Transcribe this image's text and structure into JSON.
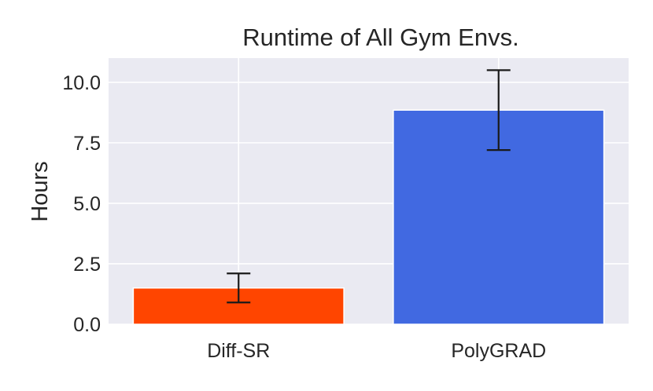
{
  "chart_data": {
    "type": "bar",
    "title": "Runtime of All Gym Envs.",
    "xlabel": "",
    "ylabel": "Hours",
    "categories": [
      "Diff-SR",
      "PolyGRAD"
    ],
    "values": [
      1.5,
      8.85
    ],
    "error": [
      0.6,
      1.65
    ],
    "colors": [
      "#ff4500",
      "#4169e1"
    ],
    "ylim": [
      0,
      11
    ],
    "yticks": [
      0.0,
      2.5,
      5.0,
      7.5,
      10.0
    ],
    "ytick_labels": [
      "0.0",
      "2.5",
      "5.0",
      "7.5",
      "10.0"
    ],
    "grid": true,
    "background": "#eaeaf2"
  }
}
